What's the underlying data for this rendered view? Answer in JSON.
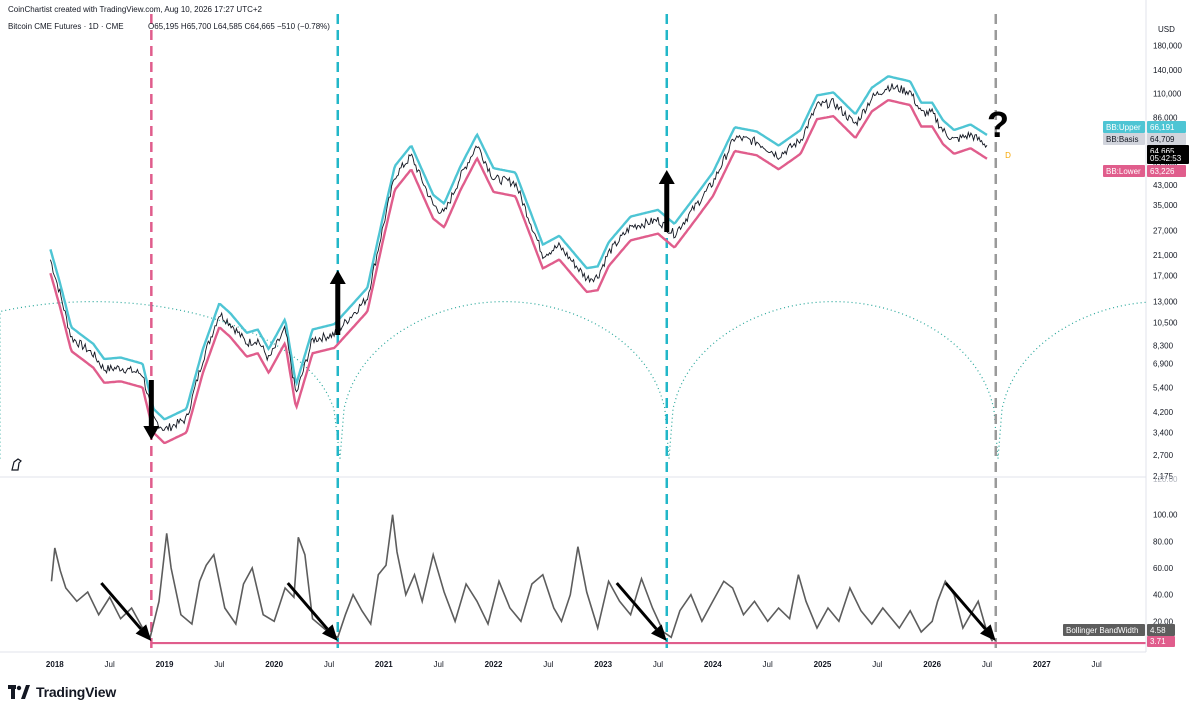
{
  "header": {
    "credit": "CoinChartist created with TradingView.com, Aug 10, 2026 17:27 UTC+2",
    "symbol": "Bitcoin CME Futures · 1D · CME",
    "ohlc": "O65,195  H65,700  L64,585  C64,665  −510 (−0.78%)"
  },
  "brand": {
    "name": "TradingView"
  },
  "colors": {
    "bb_upper": "#4ec5d4",
    "bb_lower": "#e05d8c",
    "price": "#131722",
    "bandwidth": "#5d5d5d",
    "baseline": "#e05d8c",
    "cycle": "#26a69a",
    "red_line": "#e05d8c",
    "blue_line": "#22b7c9",
    "grey_line": "#9a9a9a"
  },
  "chart_data": [
    {
      "type": "line",
      "title": "Bitcoin CME Futures · 1D · CME",
      "currency": "USD",
      "scale": "log",
      "x_ticks": [
        "2018",
        "Jul",
        "2019",
        "Jul",
        "2020",
        "Jul",
        "2021",
        "Jul",
        "2022",
        "Jul",
        "2023",
        "Jul",
        "2024",
        "Jul",
        "2025",
        "Jul",
        "2026",
        "Jul",
        "2027",
        "Jul"
      ],
      "y_ticks": [
        "180,000",
        "140,000",
        "110,000",
        "86,000",
        "67,000",
        "54,000",
        "43,000",
        "35,000",
        "27,000",
        "21,000",
        "17,000",
        "13,000",
        "10,500",
        "8,300",
        "6,900",
        "5,400",
        "4,200",
        "3,400",
        "2,700",
        "2,175"
      ],
      "y_tick_values": [
        180000,
        140000,
        110000,
        86000,
        67000,
        54000,
        43000,
        35000,
        27000,
        21000,
        17000,
        13000,
        10500,
        8300,
        6900,
        5400,
        4200,
        3400,
        2700,
        2175
      ],
      "series": [
        {
          "name": "BB:Upper",
          "last": "66,191"
        },
        {
          "name": "BB:Basis",
          "last": "64,709"
        },
        {
          "name": "BB:Lower",
          "last": "63,226"
        }
      ],
      "price_points": [
        [
          2017.96,
          20000
        ],
        [
          2018.05,
          14000
        ],
        [
          2018.15,
          9000
        ],
        [
          2018.35,
          7600
        ],
        [
          2018.45,
          6500
        ],
        [
          2018.6,
          6600
        ],
        [
          2018.8,
          6200
        ],
        [
          2018.9,
          3900
        ],
        [
          2019.0,
          3500
        ],
        [
          2019.2,
          3900
        ],
        [
          2019.35,
          7200
        ],
        [
          2019.5,
          11500
        ],
        [
          2019.6,
          10400
        ],
        [
          2019.75,
          8500
        ],
        [
          2019.85,
          8800
        ],
        [
          2019.95,
          7200
        ],
        [
          2020.1,
          9800
        ],
        [
          2020.2,
          5000
        ],
        [
          2020.35,
          8800
        ],
        [
          2020.55,
          9300
        ],
        [
          2020.7,
          11200
        ],
        [
          2020.85,
          13500
        ],
        [
          2021.0,
          29000
        ],
        [
          2021.1,
          47000
        ],
        [
          2021.25,
          58000
        ],
        [
          2021.45,
          35000
        ],
        [
          2021.55,
          32000
        ],
        [
          2021.7,
          47000
        ],
        [
          2021.85,
          65000
        ],
        [
          2022.0,
          46000
        ],
        [
          2022.2,
          44000
        ],
        [
          2022.45,
          21000
        ],
        [
          2022.6,
          23000
        ],
        [
          2022.85,
          16500
        ],
        [
          2022.95,
          16800
        ],
        [
          2023.05,
          21500
        ],
        [
          2023.25,
          28000
        ],
        [
          2023.5,
          30000
        ],
        [
          2023.65,
          26000
        ],
        [
          2023.85,
          35000
        ],
        [
          2024.0,
          44000
        ],
        [
          2024.2,
          70000
        ],
        [
          2024.4,
          67000
        ],
        [
          2024.6,
          58000
        ],
        [
          2024.8,
          68000
        ],
        [
          2024.95,
          97000
        ],
        [
          2025.1,
          100000
        ],
        [
          2025.3,
          80000
        ],
        [
          2025.45,
          105000
        ],
        [
          2025.6,
          118000
        ],
        [
          2025.8,
          112000
        ],
        [
          2025.9,
          90000
        ],
        [
          2026.0,
          90000
        ],
        [
          2026.1,
          75000
        ],
        [
          2026.2,
          68000
        ],
        [
          2026.35,
          72000
        ],
        [
          2026.5,
          64665
        ]
      ],
      "cycle_bottoms": [
        2016.1,
        2020.6,
        2023.6,
        2026.6
      ],
      "cycle_peak": 13000,
      "cycle_low": 2600,
      "vertical_lines": [
        {
          "x": 2018.88,
          "color": "red"
        },
        {
          "x": 2020.58,
          "color": "blue"
        },
        {
          "x": 2023.58,
          "color": "blue"
        },
        {
          "x": 2026.58,
          "color": "grey"
        }
      ],
      "arrows": [
        {
          "x": 2018.88,
          "direction": "down"
        },
        {
          "x": 2020.58,
          "direction": "up"
        },
        {
          "x": 2023.58,
          "direction": "up"
        }
      ],
      "annotation": "?",
      "labels": {
        "bb_upper": "BB:Upper",
        "bb_upper_val": "66,191",
        "bb_basis": "BB:Basis",
        "bb_basis_val": "64,709",
        "last_price": "64,665",
        "countdown": "05:42:53",
        "bb_lower": "BB:Lower",
        "bb_lower_val": "63,226",
        "marker": "D"
      }
    },
    {
      "type": "line",
      "title": "Bollinger BandWidth",
      "y_ticks": [
        "100.00",
        "80.00",
        "60.00",
        "40.00",
        "20.00"
      ],
      "y_tick_values": [
        100,
        80,
        60,
        40,
        20
      ],
      "ylim": [
        0,
        120
      ],
      "top_tick": "120.00",
      "baseline": 3.71,
      "last": "4.58",
      "baseline_label": "3.71",
      "series_points": [
        [
          2017.97,
          50
        ],
        [
          2018.0,
          75
        ],
        [
          2018.05,
          58
        ],
        [
          2018.1,
          45
        ],
        [
          2018.2,
          35
        ],
        [
          2018.3,
          42
        ],
        [
          2018.4,
          25
        ],
        [
          2018.5,
          38
        ],
        [
          2018.6,
          22
        ],
        [
          2018.7,
          30
        ],
        [
          2018.8,
          15
        ],
        [
          2018.87,
          8
        ],
        [
          2018.95,
          35
        ],
        [
          2019.02,
          86
        ],
        [
          2019.06,
          60
        ],
        [
          2019.15,
          25
        ],
        [
          2019.25,
          18
        ],
        [
          2019.32,
          50
        ],
        [
          2019.38,
          62
        ],
        [
          2019.45,
          70
        ],
        [
          2019.55,
          30
        ],
        [
          2019.65,
          18
        ],
        [
          2019.72,
          48
        ],
        [
          2019.8,
          60
        ],
        [
          2019.9,
          25
        ],
        [
          2020.0,
          20
        ],
        [
          2020.1,
          45
        ],
        [
          2020.18,
          38
        ],
        [
          2020.22,
          83
        ],
        [
          2020.28,
          70
        ],
        [
          2020.35,
          22
        ],
        [
          2020.45,
          15
        ],
        [
          2020.52,
          10
        ],
        [
          2020.58,
          8
        ],
        [
          2020.65,
          25
        ],
        [
          2020.72,
          40
        ],
        [
          2020.8,
          28
        ],
        [
          2020.88,
          18
        ],
        [
          2020.95,
          55
        ],
        [
          2021.02,
          62
        ],
        [
          2021.08,
          100
        ],
        [
          2021.12,
          72
        ],
        [
          2021.2,
          40
        ],
        [
          2021.28,
          55
        ],
        [
          2021.35,
          35
        ],
        [
          2021.45,
          70
        ],
        [
          2021.55,
          42
        ],
        [
          2021.65,
          20
        ],
        [
          2021.75,
          48
        ],
        [
          2021.85,
          35
        ],
        [
          2021.95,
          18
        ],
        [
          2022.05,
          50
        ],
        [
          2022.15,
          30
        ],
        [
          2022.25,
          20
        ],
        [
          2022.35,
          48
        ],
        [
          2022.45,
          55
        ],
        [
          2022.55,
          30
        ],
        [
          2022.62,
          20
        ],
        [
          2022.7,
          40
        ],
        [
          2022.77,
          76
        ],
        [
          2022.85,
          42
        ],
        [
          2022.95,
          15
        ],
        [
          2023.05,
          50
        ],
        [
          2023.15,
          35
        ],
        [
          2023.25,
          25
        ],
        [
          2023.35,
          52
        ],
        [
          2023.45,
          30
        ],
        [
          2023.55,
          12
        ],
        [
          2023.62,
          8
        ],
        [
          2023.7,
          28
        ],
        [
          2023.8,
          40
        ],
        [
          2023.9,
          20
        ],
        [
          2024.0,
          35
        ],
        [
          2024.1,
          50
        ],
        [
          2024.18,
          45
        ],
        [
          2024.28,
          25
        ],
        [
          2024.38,
          35
        ],
        [
          2024.5,
          20
        ],
        [
          2024.6,
          30
        ],
        [
          2024.7,
          22
        ],
        [
          2024.78,
          55
        ],
        [
          2024.85,
          35
        ],
        [
          2024.95,
          15
        ],
        [
          2025.05,
          30
        ],
        [
          2025.15,
          20
        ],
        [
          2025.25,
          45
        ],
        [
          2025.35,
          28
        ],
        [
          2025.45,
          18
        ],
        [
          2025.55,
          30
        ],
        [
          2025.7,
          15
        ],
        [
          2025.8,
          28
        ],
        [
          2025.9,
          12
        ],
        [
          2026.0,
          20
        ],
        [
          2026.05,
          35
        ],
        [
          2026.12,
          50
        ],
        [
          2026.2,
          40
        ],
        [
          2026.28,
          15
        ],
        [
          2026.35,
          25
        ],
        [
          2026.42,
          35
        ],
        [
          2026.5,
          12
        ],
        [
          2026.55,
          5
        ]
      ],
      "arrows": [
        {
          "x": 2018.88
        },
        {
          "x": 2020.58
        },
        {
          "x": 2023.58
        },
        {
          "x": 2026.58
        }
      ],
      "label": "Bollinger BandWidth"
    }
  ]
}
